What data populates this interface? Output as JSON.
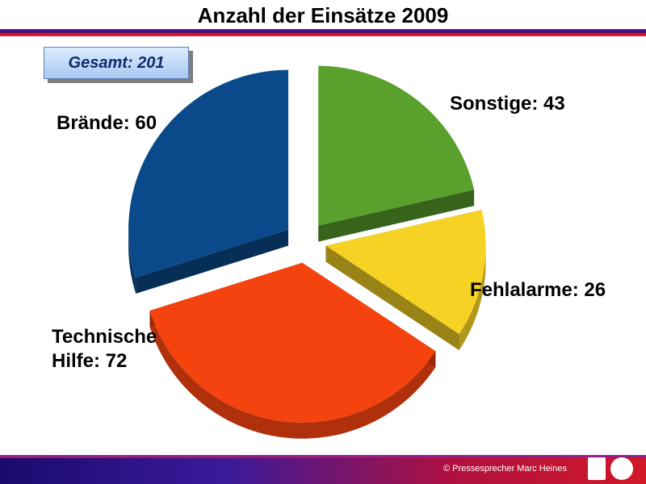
{
  "title": "Anzahl der Einsätze 2009",
  "total_label": "Gesamt: 201",
  "footer": "© Pressesprecher Marc Heines",
  "colors": {
    "sonstige": "#5aa02c",
    "fehlalarme": "#f6d224",
    "technische_hilfe": "#f4430f",
    "braende": "#0a4a8a"
  },
  "chart_data": {
    "type": "pie",
    "title": "Anzahl der Einsätze 2009",
    "slices": [
      {
        "label_line1": "Sonstige: 43",
        "label_line2": "",
        "value": 43
      },
      {
        "label_line1": "Fehlalarme: 26",
        "label_line2": "",
        "value": 26
      },
      {
        "label_line1": "Technische",
        "label_line2": "Hilfe: 72",
        "value": 72
      },
      {
        "label_line1": "Brände: 60",
        "label_line2": "",
        "value": 60
      }
    ],
    "total": 201
  }
}
